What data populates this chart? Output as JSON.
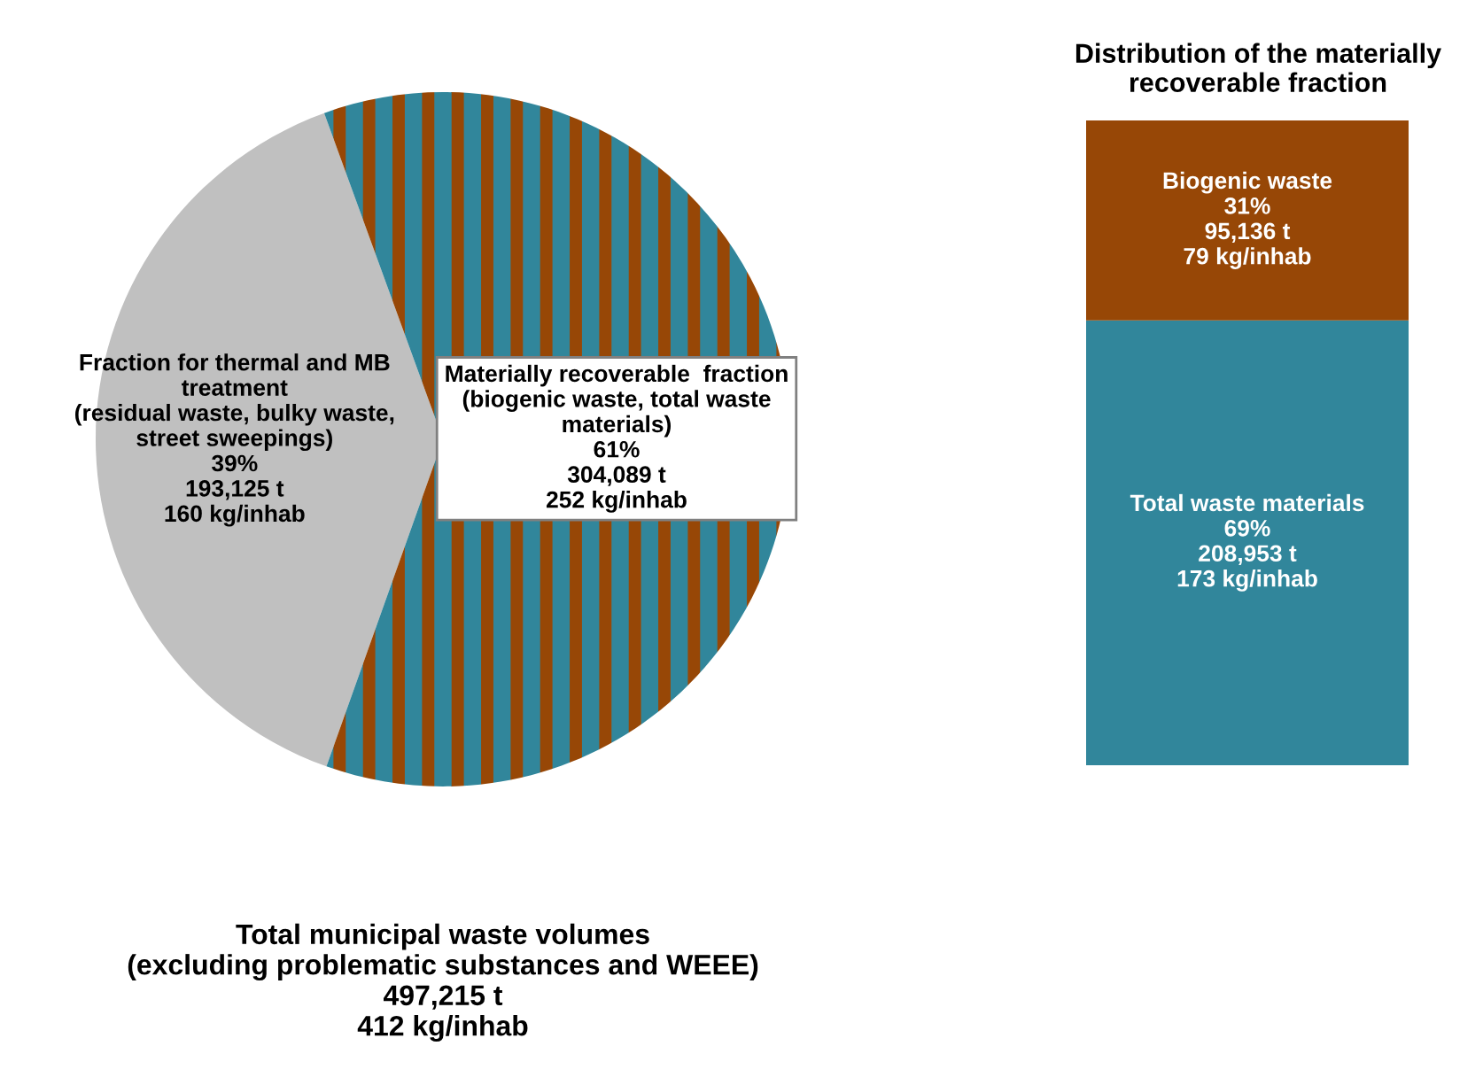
{
  "chart_data": [
    {
      "type": "pie",
      "title": "Total municipal waste volumes\n(excluding problematic substances and WEEE)\n497,215 t\n412 kg/inhab",
      "categories": [
        "Fraction for thermal and MB\ntreatment\n(residual waste, bulky waste,\nstreet sweepings)",
        "Materially recoverable  fraction\n(biogenic waste, total waste\nmaterials)"
      ],
      "values": [
        39,
        61
      ],
      "value_labels": [
        "39%\n193,125 t\n160 kg/inhab",
        "61%\n304,089 t\n252 kg/inhab"
      ],
      "colors": [
        "#c0c0c0",
        "#31869b"
      ]
    },
    {
      "type": "bar",
      "stacked": true,
      "title": "Distribution of the materially\nrecoverable fraction",
      "categories": [
        null
      ],
      "series": [
        {
          "name": "Total waste materials",
          "color": "#31869b",
          "values": [
            69
          ],
          "value_labels": [
            "69%\n208,953 t\n173 kg/inhab"
          ]
        },
        {
          "name": "Biogenic waste",
          "color": "#974706",
          "values": [
            31
          ],
          "value_labels": [
            "31%\n95,136 t\n79 kg/inhab"
          ]
        }
      ]
    }
  ]
}
